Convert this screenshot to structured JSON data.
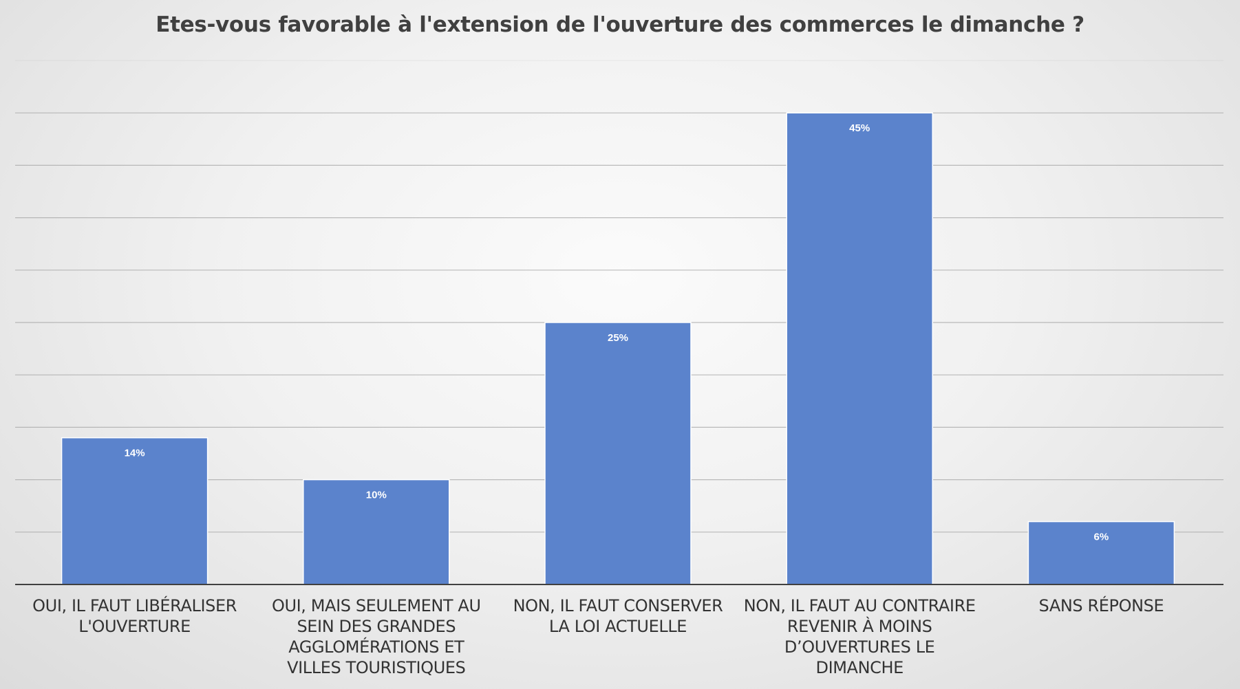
{
  "chart_data": {
    "type": "bar",
    "title": "Etes-vous favorable à l'extension de l'ouverture des commerces le dimanche ?",
    "xlabel": "",
    "ylabel": "",
    "categories": [
      "OUI, IL FAUT LIBÉRALISER L'OUVERTURE",
      "OUI, MAIS SEULEMENT AU SEIN DES GRANDES AGGLOMÉRATIONS ET VILLES TOURISTIQUES",
      "NON, IL FAUT CONSERVER LA LOI ACTUELLE",
      "NON, IL FAUT AU CONTRAIRE REVENIR À MOINS D’OUVERTURES LE DIMANCHE",
      "SANS RÉPONSE"
    ],
    "values": [
      14,
      10,
      25,
      45,
      6
    ],
    "data_labels": [
      "14%",
      "10%",
      "25%",
      "45%",
      "6%"
    ],
    "ylim": [
      0,
      50
    ],
    "grid": true,
    "legend": "none",
    "colors": {
      "bar": "#5b83cc",
      "bar_border": "#ffffff",
      "data_label": "#ffffff",
      "grid": "#a6a6a6",
      "axis": "#404040"
    }
  }
}
